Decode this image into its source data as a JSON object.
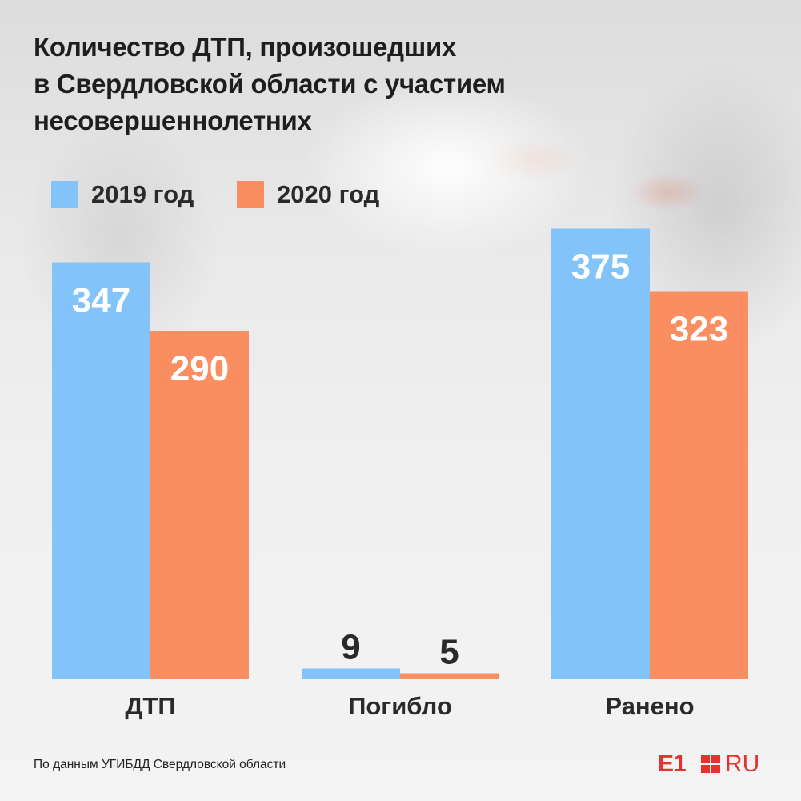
{
  "title_lines": [
    "Количество ДТП, произошедших",
    "в Свердловской области с участием",
    "несовершеннолетних"
  ],
  "legend": [
    {
      "label": "2019 год",
      "color": "#82c4fa"
    },
    {
      "label": "2020 год",
      "color": "#fb8e60"
    }
  ],
  "chart_data": {
    "type": "bar",
    "title": "Количество ДТП, произошедших в Свердловской области с участием несовершеннолетних",
    "categories": [
      "ДТП",
      "Погибло",
      "Ранено"
    ],
    "series": [
      {
        "name": "2019 год",
        "values": [
          347,
          9,
          375
        ],
        "color": "#82c4fa"
      },
      {
        "name": "2020 год",
        "values": [
          290,
          5,
          323
        ],
        "color": "#fb8e60"
      }
    ],
    "grid": false,
    "legend_position": "top-left"
  },
  "source": "По данным УГИБДД Свердловской области",
  "logo": {
    "left": "E1",
    "right": "RU",
    "color": "#e5322d"
  }
}
